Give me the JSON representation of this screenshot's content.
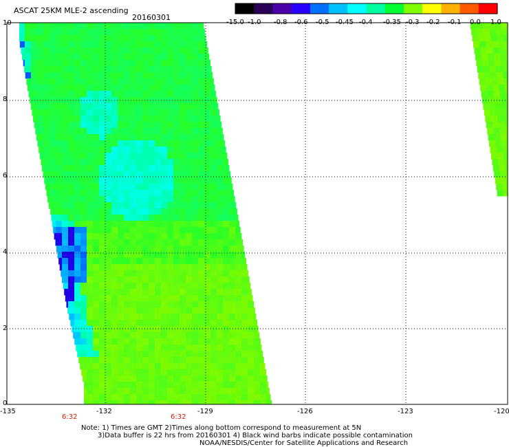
{
  "header": {
    "title": "ASCAT 25KM MLE-2 ascending",
    "date": "20160301"
  },
  "colorbar": {
    "labels": [
      "-15.0",
      "-1.0",
      "-0.8",
      "-0.6",
      "-0.5",
      "-0.45",
      "-0.4",
      "-0.35",
      "-0.3",
      "-0.2",
      "-0.1",
      "0.0",
      "1.0"
    ],
    "colors": [
      "#000000",
      "#2a0057",
      "#4b00a8",
      "#2800ff",
      "#0070ff",
      "#00c0ff",
      "#00ffff",
      "#00ffa0",
      "#00ff30",
      "#7fff00",
      "#ffff00",
      "#ffb000",
      "#ff5a00",
      "#ff0000"
    ]
  },
  "axes": {
    "y_ticks": [
      "10",
      "8",
      "6",
      "4",
      "2",
      "0"
    ],
    "x_ticks": [
      "-135",
      "-132",
      "-129",
      "-126",
      "-123",
      "-120"
    ],
    "time_labels": [
      "6:32",
      "6:32"
    ],
    "time_label_color": "#cc2200"
  },
  "notes": {
    "line1": "Note: 1) Times are GMT 2)Times along bottom correspond to measurement at 5N",
    "line2": "3)Data buffer is 22 hrs from 20160301 4) Black wind barbs indicate possible contamination",
    "line3": "NOAA/NESDIS/Center for Satellite Applications and Research"
  }
}
